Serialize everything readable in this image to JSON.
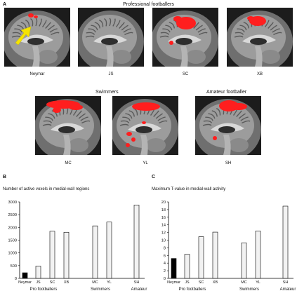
{
  "panel_a": {
    "letter": "A",
    "header_pro": "Professional footballers",
    "header_swimmers": "Swimmers",
    "header_amateur": "Amateur footballer",
    "scans": [
      "Neymar",
      "JS",
      "SC",
      "XB",
      "MC",
      "YL",
      "SH"
    ]
  },
  "panel_b": {
    "letter": "B"
  },
  "panel_c": {
    "letter": "C"
  },
  "colors": {
    "activation": "#ff1e1e",
    "arrow": "#f5e400",
    "neymar_bar": "#000000",
    "other_bars": "#f2f2f2"
  },
  "chart_data": [
    {
      "type": "bar",
      "title": "Number of active voxels in medial-wall regions",
      "categories": [
        "Neymar",
        "JS",
        "SC",
        "XB",
        "MC",
        "YL",
        "SH"
      ],
      "values": [
        220,
        480,
        1850,
        1810,
        2060,
        2210,
        2880
      ],
      "yticks": [
        0,
        500,
        1000,
        1500,
        2000,
        2500,
        3000
      ],
      "ylim": [
        0,
        3000
      ],
      "groups": [
        {
          "label": "Pro footballers",
          "members": [
            "Neymar",
            "JS",
            "SC",
            "XB"
          ]
        },
        {
          "label": "Swimmers",
          "members": [
            "MC",
            "YL"
          ]
        },
        {
          "label": "Amateur",
          "members": [
            "SH"
          ]
        }
      ],
      "grid": false
    },
    {
      "type": "bar",
      "title": "Maximum T-value in medial-wall activity",
      "categories": [
        "Neymar",
        "JS",
        "SC",
        "XB",
        "MC",
        "YL",
        "SH"
      ],
      "values": [
        5.2,
        6.3,
        10.9,
        12.1,
        9.3,
        12.4,
        18.9
      ],
      "yticks": [
        0,
        2,
        4,
        6,
        8,
        10,
        12,
        14,
        16,
        18,
        20
      ],
      "ylim": [
        0,
        20
      ],
      "groups": [
        {
          "label": "Pro footballers",
          "members": [
            "Neymar",
            "JS",
            "SC",
            "XB"
          ]
        },
        {
          "label": "Swimmers",
          "members": [
            "MC",
            "YL"
          ]
        },
        {
          "label": "Amateur",
          "members": [
            "SH"
          ]
        }
      ],
      "grid": false
    }
  ]
}
